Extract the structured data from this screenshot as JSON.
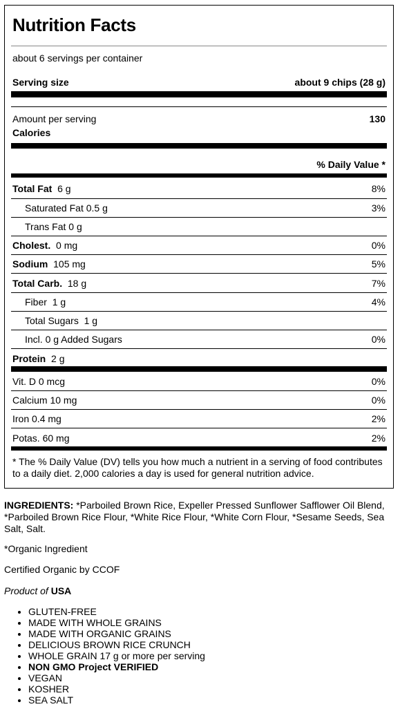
{
  "label": {
    "title": "Nutrition Facts",
    "servings_per_container": "about 6 servings per container",
    "serving_size_label": "Serving size",
    "serving_size_value": "about 9 chips (28 g)",
    "amount_per_serving": "Amount per serving",
    "calories_label": "Calories",
    "calories_value": "130",
    "daily_value_header": "% Daily Value *",
    "nutrients": [
      {
        "name": "Total Fat",
        "amount": "6 g",
        "dv": "8%"
      },
      {
        "name": "Saturated Fat 0.5 g",
        "amount": "",
        "dv": "3%"
      },
      {
        "name": "Trans Fat 0 g",
        "amount": "",
        "dv": ""
      },
      {
        "name": "Cholest.",
        "amount": "0 mg",
        "dv": "0%"
      },
      {
        "name": "Sodium",
        "amount": "105 mg",
        "dv": "5%"
      },
      {
        "name": "Total Carb.",
        "amount": "18 g",
        "dv": "7%"
      },
      {
        "name": "Fiber",
        "amount": "1 g",
        "dv": "4%"
      },
      {
        "name": "Total Sugars",
        "amount": "1 g",
        "dv": ""
      },
      {
        "name": "Incl. 0 g Added Sugars",
        "amount": "",
        "dv": "0%"
      },
      {
        "name": "Protein",
        "amount": "2 g",
        "dv": ""
      }
    ],
    "vitamins": [
      {
        "name": "Vit. D 0 mcg",
        "dv": "0%"
      },
      {
        "name": "Calcium 10 mg",
        "dv": "0%"
      },
      {
        "name": "Iron 0.4 mg",
        "dv": "2%"
      },
      {
        "name": "Potas. 60 mg",
        "dv": "2%"
      }
    ],
    "footnote": "* The % Daily Value (DV) tells you how much a nutrient in a serving of food contributes to a daily diet. 2,000 calories a day is used for general nutrition advice."
  },
  "ingredients": {
    "heading": "INGREDIENTS:",
    "text": " *Parboiled Brown Rice, Expeller Pressed Sunflower Safflower Oil Blend, *Parboiled Brown Rice Flour, *White Rice Flour, *White Corn Flour, *Sesame Seeds, Sea Salt, Salt."
  },
  "organic_note": "*Organic Ingredient",
  "certified": "Certified Organic by CCOF",
  "origin": {
    "prefix": "Product of",
    "country": "USA"
  },
  "claims": [
    "GLUTEN-FREE",
    "MADE WITH WHOLE GRAINS",
    "MADE WITH ORGANIC GRAINS",
    "DELICIOUS BROWN RICE CRUNCH",
    "WHOLE GRAIN 17 g or more per serving",
    "NON GMO Project VERIFIED",
    "VEGAN",
    "KOSHER",
    "SEA SALT"
  ]
}
